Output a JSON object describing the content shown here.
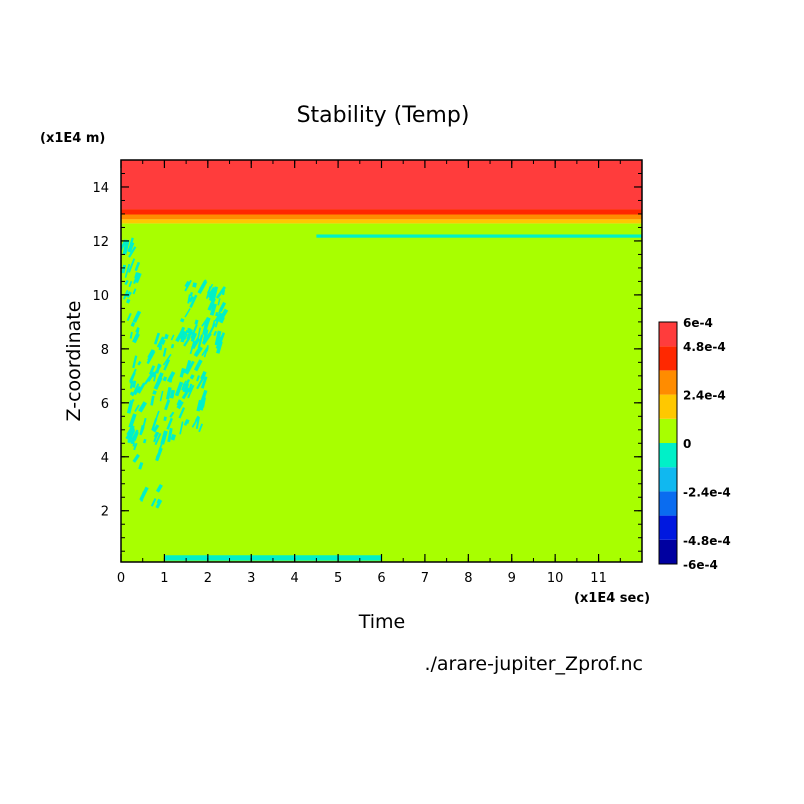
{
  "chart_data": {
    "type": "heatmap",
    "title": "Stability (Temp)",
    "xlabel": "Time",
    "ylabel": "Z-coordinate",
    "x_unit": "(x1E4 sec)",
    "y_unit": "(x1E4 m)",
    "source_file": "./arare-jupiter_Zprof.nc",
    "xlim": [
      0,
      12
    ],
    "ylim": [
      0.1,
      15
    ],
    "x_ticks": [
      0,
      1,
      2,
      3,
      4,
      5,
      6,
      7,
      8,
      9,
      10,
      11
    ],
    "y_ticks": [
      2,
      4,
      6,
      8,
      10,
      12,
      14
    ],
    "colorbar": {
      "levels": [
        -0.0006,
        -0.00048,
        -0.00036,
        -0.00024,
        -0.00012,
        0,
        0.00012,
        0.00024,
        0.00036,
        0.00048,
        0.0006
      ],
      "colors": [
        "#0000a0",
        "#0018e0",
        "#0a6cf0",
        "#10b8f0",
        "#00f0c8",
        "#a8ff00",
        "#ffc800",
        "#ff8c00",
        "#ff2800",
        "#ff3c3c"
      ],
      "tick_labels": [
        {
          "value": 0.0006,
          "text": "6e-4"
        },
        {
          "value": 0.00048,
          "text": "4.8e-4"
        },
        {
          "value": 0.00024,
          "text": "2.4e-4"
        },
        {
          "value": 0,
          "text": "0"
        },
        {
          "value": -0.00024,
          "text": "-2.4e-4"
        },
        {
          "value": -0.00048,
          "text": "-4.8e-4"
        },
        {
          "value": -0.0006,
          "text": "-6e-4"
        }
      ]
    },
    "bands": [
      {
        "z_from": 0.1,
        "z_to": 12.65,
        "value_class": 5,
        "description": "0 to 1.2e-4"
      },
      {
        "z_from": 12.65,
        "z_to": 12.8,
        "value_class": 6
      },
      {
        "z_from": 12.8,
        "z_to": 12.98,
        "value_class": 7
      },
      {
        "z_from": 12.98,
        "z_to": 13.18,
        "value_class": 8
      },
      {
        "z_from": 13.18,
        "z_to": 15,
        "value_class": 9
      }
    ],
    "negative_patches": [
      {
        "t": [
          0.05,
          0.4
        ],
        "z": [
          9.2,
          12.2
        ]
      },
      {
        "t": [
          0.2,
          0.55
        ],
        "z": [
          3.6,
          9.0
        ]
      },
      {
        "t": [
          0.7,
          1.2
        ],
        "z": [
          3.9,
          8.6
        ]
      },
      {
        "t": [
          1.3,
          2.0
        ],
        "z": [
          5.2,
          9.2
        ]
      },
      {
        "t": [
          1.5,
          2.4
        ],
        "z": [
          8.0,
          10.6
        ]
      },
      {
        "t": [
          0.5,
          1.0
        ],
        "z": [
          2.4,
          3.0
        ]
      },
      {
        "t": [
          1.0,
          6.0
        ],
        "z": [
          0.15,
          0.35
        ]
      },
      {
        "t": [
          4.5,
          12.0
        ],
        "z": [
          12.12,
          12.24
        ]
      }
    ]
  }
}
